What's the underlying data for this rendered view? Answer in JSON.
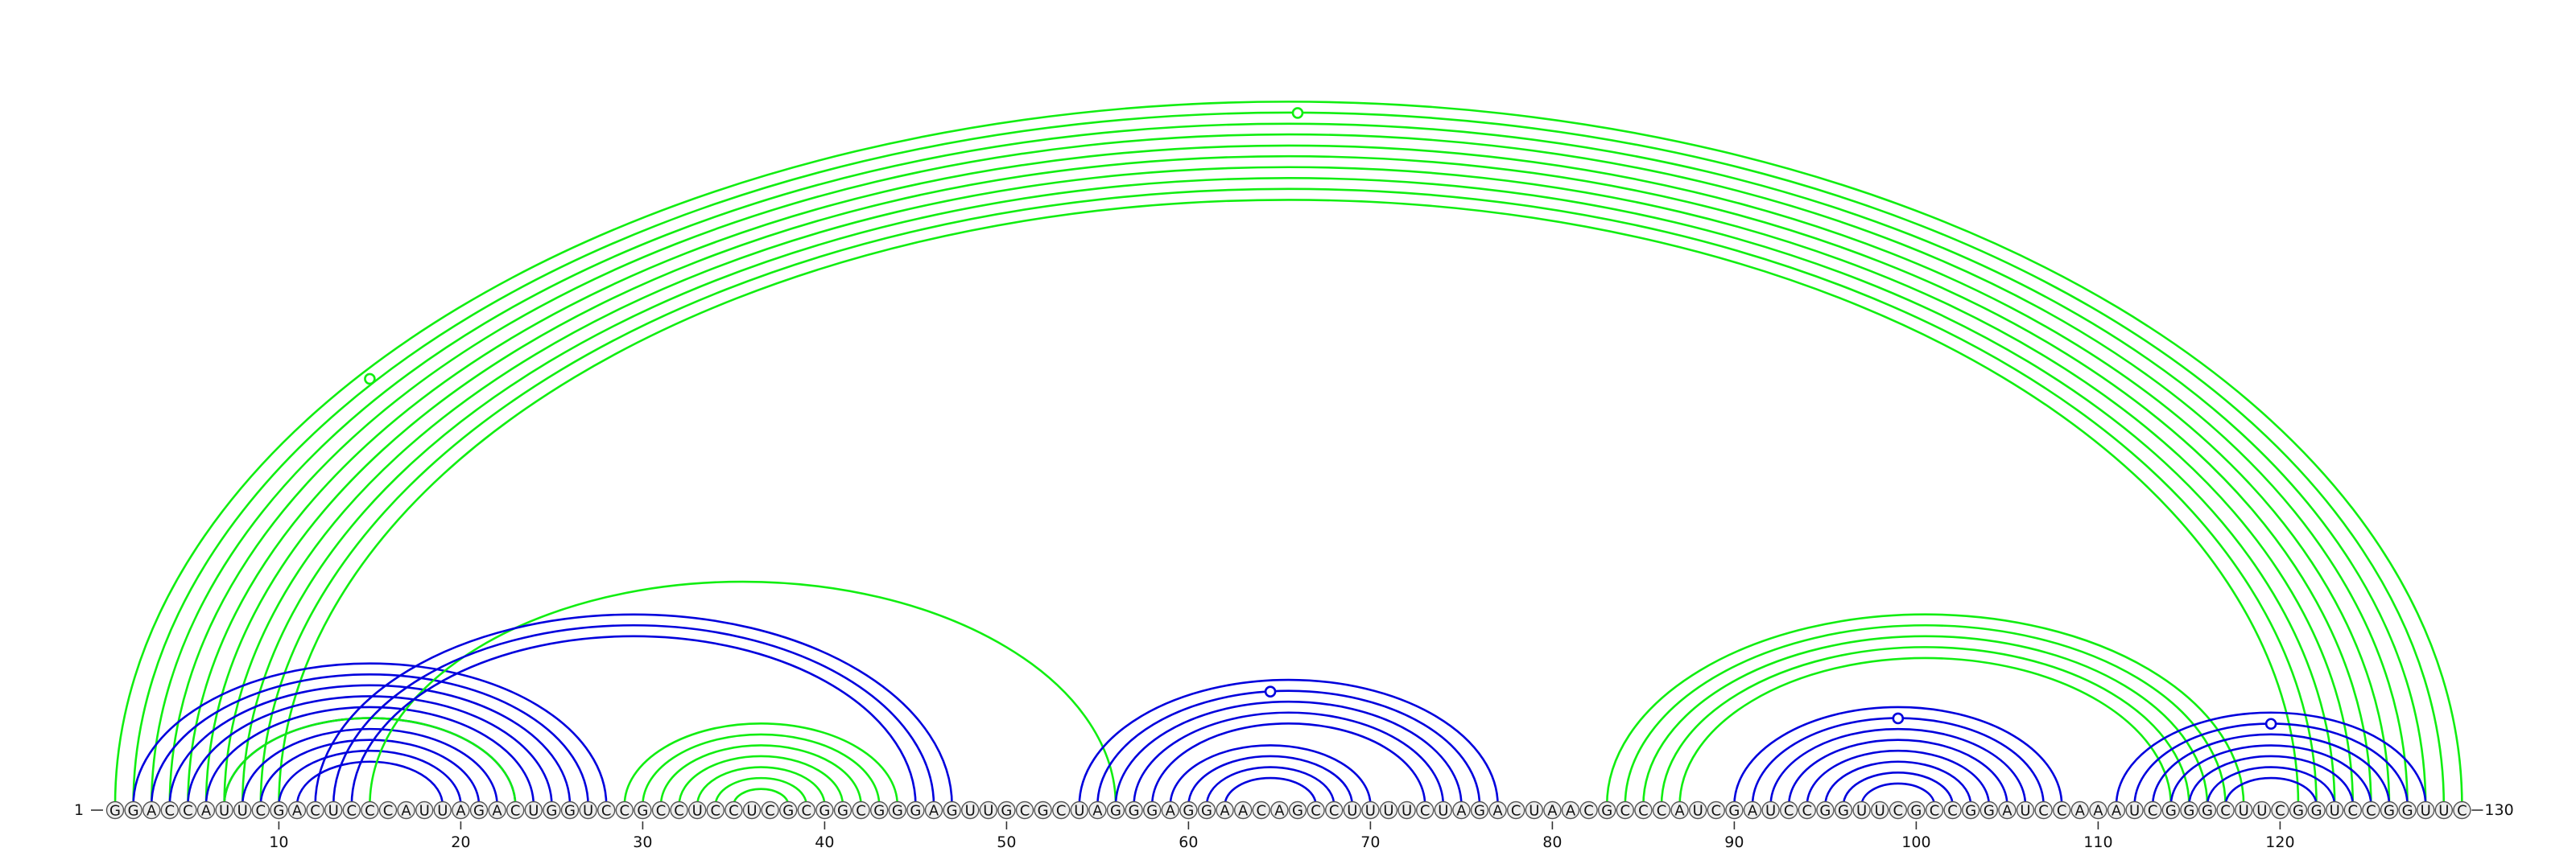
{
  "diagram": {
    "type": "rna-arc-diagram",
    "sequence": "GGACCAUUCGACUCCCAUUAGACUGGUCCGCCUCCUCGCGGCGGGAGUUGCGCUAGGGAGGAACAGCCUUUUCUAGACUAACGCCCAUCGAUCCGGUUCGCCGGAUCCAAAUCGGGCUUCGGUCCGGUUC",
    "start_label": "1",
    "end_label": "130",
    "tick_labels": [
      "10",
      "20",
      "30",
      "40",
      "50",
      "60",
      "70",
      "80",
      "90",
      "100",
      "110",
      "120"
    ],
    "colors": {
      "blue": "#0000dd",
      "green": "#11ee11",
      "nucleotide_fill": "#eeeeee",
      "nucleotide_stroke": "#555555"
    },
    "pairs": [
      {
        "i": 1,
        "j": 130,
        "color": "green"
      },
      {
        "i": 2,
        "j": 129,
        "color": "green"
      },
      {
        "i": 3,
        "j": 128,
        "color": "green"
      },
      {
        "i": 4,
        "j": 127,
        "color": "green"
      },
      {
        "i": 5,
        "j": 126,
        "color": "green"
      },
      {
        "i": 6,
        "j": 125,
        "color": "green"
      },
      {
        "i": 7,
        "j": 124,
        "color": "green"
      },
      {
        "i": 8,
        "j": 123,
        "color": "green"
      },
      {
        "i": 9,
        "j": 122,
        "color": "green"
      },
      {
        "i": 10,
        "j": 121,
        "color": "green"
      },
      {
        "i": 2,
        "j": 28,
        "color": "blue"
      },
      {
        "i": 3,
        "j": 27,
        "color": "blue"
      },
      {
        "i": 4,
        "j": 26,
        "color": "blue"
      },
      {
        "i": 5,
        "j": 25,
        "color": "blue"
      },
      {
        "i": 6,
        "j": 24,
        "color": "blue"
      },
      {
        "i": 7,
        "j": 23,
        "color": "blue"
      },
      {
        "i": 8,
        "j": 22,
        "color": "blue"
      },
      {
        "i": 9,
        "j": 21,
        "color": "blue"
      },
      {
        "i": 10,
        "j": 20,
        "color": "blue"
      },
      {
        "i": 11,
        "j": 19,
        "color": "blue"
      },
      {
        "i": 7,
        "j": 23,
        "color": "green"
      },
      {
        "i": 15,
        "j": 56,
        "color": "green"
      },
      {
        "i": 12,
        "j": 47,
        "color": "blue"
      },
      {
        "i": 13,
        "j": 46,
        "color": "blue"
      },
      {
        "i": 14,
        "j": 45,
        "color": "blue"
      },
      {
        "i": 29,
        "j": 44,
        "color": "green"
      },
      {
        "i": 30,
        "j": 43,
        "color": "green"
      },
      {
        "i": 31,
        "j": 42,
        "color": "green"
      },
      {
        "i": 32,
        "j": 41,
        "color": "green"
      },
      {
        "i": 33,
        "j": 40,
        "color": "green"
      },
      {
        "i": 34,
        "j": 39,
        "color": "green"
      },
      {
        "i": 35,
        "j": 38,
        "color": "green"
      },
      {
        "i": 54,
        "j": 77,
        "color": "blue"
      },
      {
        "i": 55,
        "j": 76,
        "color": "blue"
      },
      {
        "i": 56,
        "j": 75,
        "color": "blue"
      },
      {
        "i": 57,
        "j": 74,
        "color": "blue"
      },
      {
        "i": 58,
        "j": 73,
        "color": "blue"
      },
      {
        "i": 59,
        "j": 70,
        "color": "blue"
      },
      {
        "i": 60,
        "j": 69,
        "color": "blue"
      },
      {
        "i": 61,
        "j": 68,
        "color": "blue"
      },
      {
        "i": 62,
        "j": 67,
        "color": "blue"
      },
      {
        "i": 83,
        "j": 118,
        "color": "green"
      },
      {
        "i": 84,
        "j": 117,
        "color": "green"
      },
      {
        "i": 85,
        "j": 116,
        "color": "green"
      },
      {
        "i": 86,
        "j": 115,
        "color": "green"
      },
      {
        "i": 87,
        "j": 114,
        "color": "green"
      },
      {
        "i": 90,
        "j": 108,
        "color": "blue"
      },
      {
        "i": 91,
        "j": 107,
        "color": "blue"
      },
      {
        "i": 92,
        "j": 106,
        "color": "blue"
      },
      {
        "i": 93,
        "j": 105,
        "color": "blue"
      },
      {
        "i": 94,
        "j": 104,
        "color": "blue"
      },
      {
        "i": 95,
        "j": 103,
        "color": "blue"
      },
      {
        "i": 96,
        "j": 102,
        "color": "blue"
      },
      {
        "i": 97,
        "j": 101,
        "color": "blue"
      },
      {
        "i": 111,
        "j": 128,
        "color": "blue"
      },
      {
        "i": 112,
        "j": 127,
        "color": "blue"
      },
      {
        "i": 113,
        "j": 126,
        "color": "blue"
      },
      {
        "i": 114,
        "j": 125,
        "color": "blue"
      },
      {
        "i": 115,
        "j": 124,
        "color": "blue"
      },
      {
        "i": 116,
        "j": 123,
        "color": "blue"
      },
      {
        "i": 117,
        "j": 122,
        "color": "blue"
      }
    ],
    "pk_markers": [
      {
        "pos": 66.0,
        "color": "green"
      },
      {
        "pos": 15.0,
        "color": "green"
      },
      {
        "pos": 64.5,
        "color": "blue"
      },
      {
        "pos": 99.0,
        "color": "blue"
      },
      {
        "pos": 119.5,
        "color": "blue"
      }
    ]
  }
}
